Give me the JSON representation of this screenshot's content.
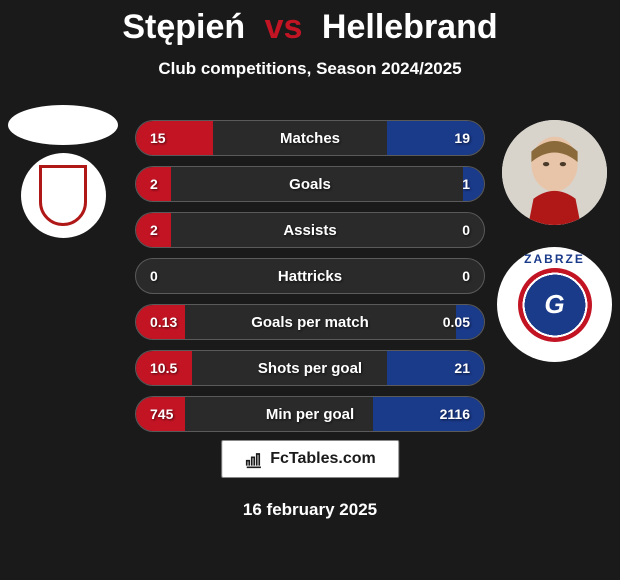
{
  "header": {
    "player1": "Stępień",
    "vs": "vs",
    "player2": "Hellebrand",
    "subtitle": "Club competitions, Season 2024/2025"
  },
  "colors": {
    "bar_left": "#c31424",
    "bar_right": "#1a3a8a",
    "background": "#1a1a1a",
    "row_bg": "#2a2a2a"
  },
  "stats": [
    {
      "label": "Matches",
      "left_val": "15",
      "right_val": "19",
      "left_pct": 22,
      "right_pct": 28
    },
    {
      "label": "Goals",
      "left_val": "2",
      "right_val": "1",
      "left_pct": 10,
      "right_pct": 6
    },
    {
      "label": "Assists",
      "left_val": "2",
      "right_val": "0",
      "left_pct": 10,
      "right_pct": 0
    },
    {
      "label": "Hattricks",
      "left_val": "0",
      "right_val": "0",
      "left_pct": 0,
      "right_pct": 0
    },
    {
      "label": "Goals per match",
      "left_val": "0.13",
      "right_val": "0.05",
      "left_pct": 14,
      "right_pct": 8
    },
    {
      "label": "Shots per goal",
      "left_val": "10.5",
      "right_val": "21",
      "left_pct": 16,
      "right_pct": 28
    },
    {
      "label": "Min per goal",
      "left_val": "745",
      "right_val": "2116",
      "left_pct": 14,
      "right_pct": 32
    }
  ],
  "brand": {
    "text": "FcTables.com"
  },
  "date": "16 february 2025",
  "logos": {
    "gornik_letter": "G",
    "gornik_arc": "ZABRZE"
  }
}
